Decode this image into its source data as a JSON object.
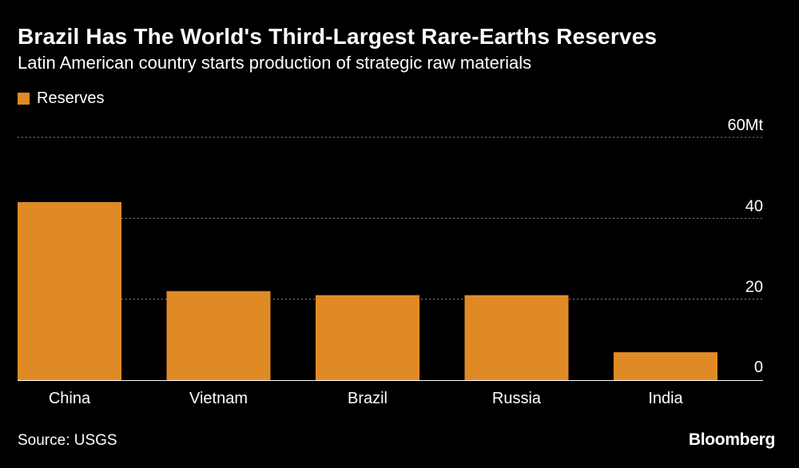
{
  "colors": {
    "background": "#000000",
    "bar": "#e08a26",
    "text": "#ffffff",
    "grid": "#8c8c8c"
  },
  "header": {
    "title": "Brazil Has The World's Third-Largest Rare-Earths Reserves",
    "subtitle": "Latin American country starts production of strategic raw materials"
  },
  "footer": {
    "source": "Source: USGS",
    "brand": "Bloomberg"
  },
  "chart_data": {
    "type": "bar",
    "title": "Brazil Has The World's Third-Largest Rare-Earths Reserves",
    "subtitle": "Latin American country starts production of strategic raw materials",
    "categories": [
      "China",
      "Vietnam",
      "Brazil",
      "Russia",
      "India"
    ],
    "series": [
      {
        "name": "Reserves",
        "values": [
          44,
          22,
          21,
          21,
          6.9
        ]
      }
    ],
    "ylim": [
      0,
      60
    ],
    "yticks": [
      0,
      20,
      40,
      60
    ],
    "ytick_labels": [
      "0",
      "20",
      "40",
      "60Mt"
    ],
    "xlabel": "",
    "ylabel": "",
    "grid": true,
    "legend": "top-left"
  }
}
